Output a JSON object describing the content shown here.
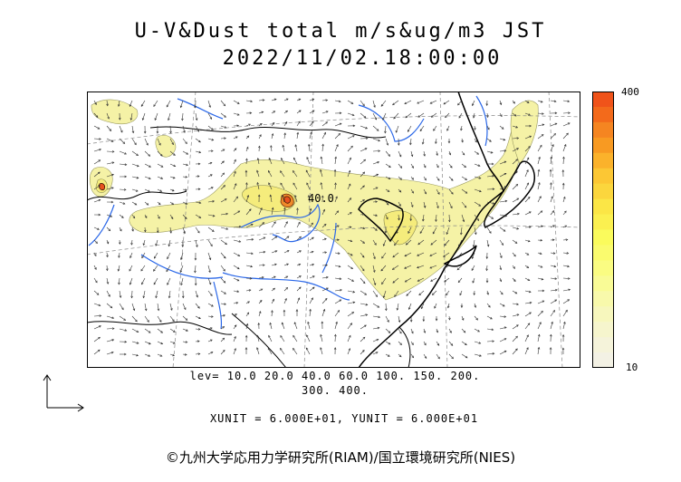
{
  "title": {
    "line1": "U-V&Dust total m/s&ug/m3 JST",
    "line2": "2022/11/02.18:00:00"
  },
  "colorbar": {
    "max_label": "400",
    "min_label": "10",
    "colors": [
      "#f0531a",
      "#f36a1b",
      "#f58521",
      "#f89a22",
      "#fbb22b",
      "#fcc734",
      "#fbd63d",
      "#fbe646",
      "#fbf050",
      "#fafb5c",
      "#fafb6e",
      "#fafc82",
      "#f9fb96",
      "#f8f9ab",
      "#f7f7bd",
      "#f6f5cd",
      "#f5f3da",
      "#f3f1e4"
    ]
  },
  "levels": {
    "line1": "lev= 10.0 20.0 40.0 60.0 100. 150. 200.",
    "line2": "300. 400."
  },
  "contour_label": "40.0",
  "units_text": "XUNIT = 6.000E+01, YUNIT = 6.000E+01",
  "copyright": "©九州大学応用力学研究所(RIAM)/国立環境研究所(NIES)",
  "colors": {
    "dust_light": "#f5f2a6",
    "dust_mid": "#f5ec7c",
    "dust_high": "#f08a2a",
    "dust_peak": "#e8521e",
    "rivers": "#2a67e8",
    "coast": "#000000",
    "gridlines": "#888888"
  }
}
